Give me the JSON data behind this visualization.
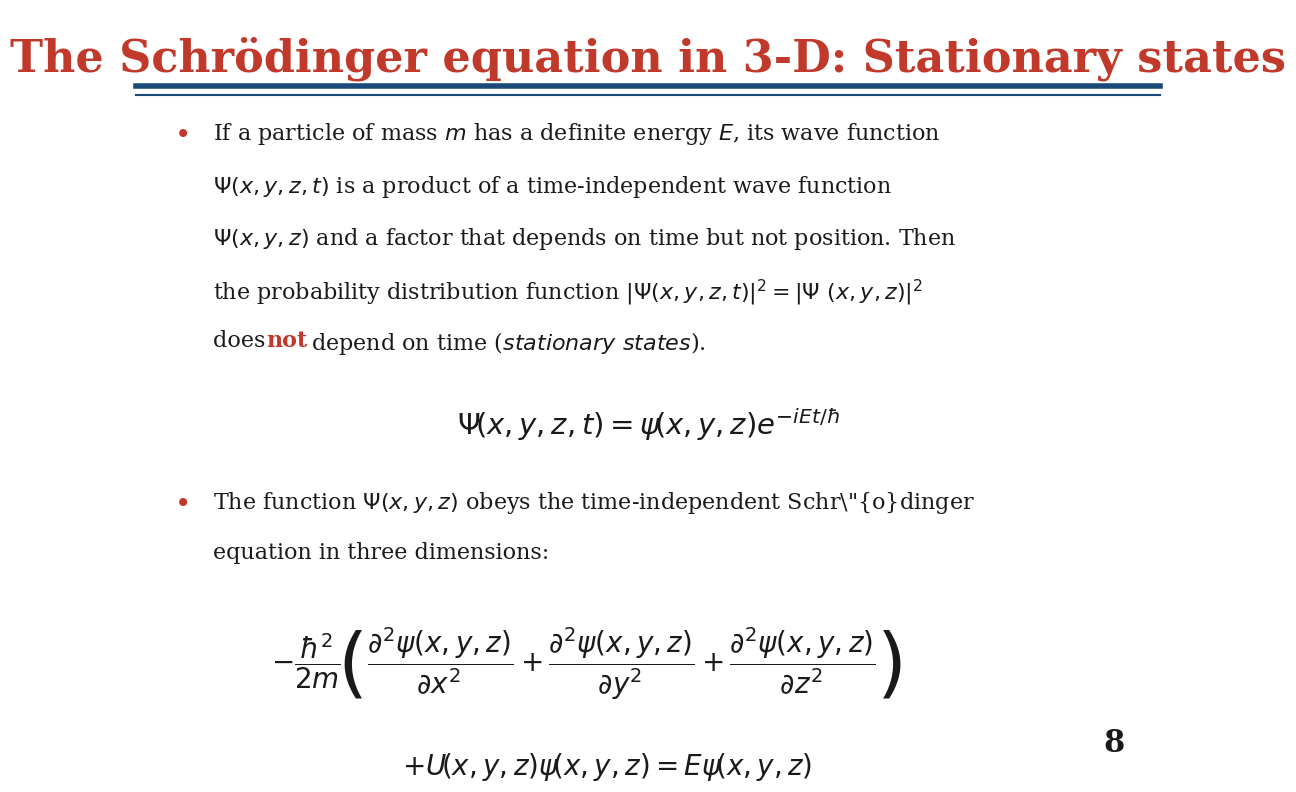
{
  "title": "The Schrödinger equation in 3-D: Stationary states",
  "title_color": "#C0392B",
  "title_fontsize": 32,
  "underline_color1": "#1a4a7a",
  "underline_color2": "#1a4a7a",
  "background_color": "#ffffff",
  "bullet_color": "#C0392B",
  "text_color": "#1a1a1a",
  "not_color": "#C0392B",
  "page_number": "8"
}
